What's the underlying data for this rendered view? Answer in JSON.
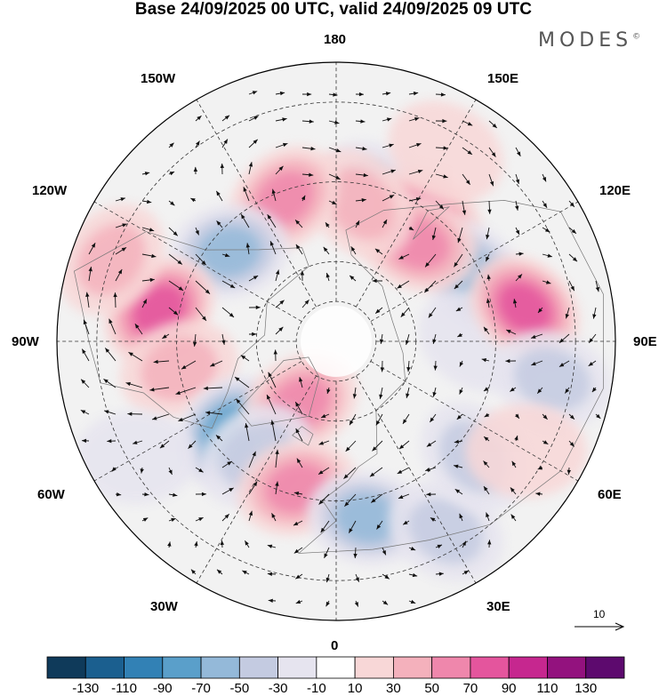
{
  "title": "Base 24/09/2025 00 UTC, valid 24/09/2025 09 UTC",
  "brand": {
    "name": "MODES",
    "mark": "©"
  },
  "longitude_labels": {
    "top": "180",
    "bottom": "0",
    "left": "90W",
    "right": "90E",
    "upper_left": "150W",
    "upper_right": "150E",
    "mid_upper_left": "120W",
    "mid_upper_right": "120E",
    "mid_lower_left": "60W",
    "mid_lower_right": "60E",
    "lower_left": "30W",
    "lower_right": "30E"
  },
  "vector_scale": {
    "label": "10"
  },
  "legend": {
    "colors": [
      "#0f3a5a",
      "#1b5f8f",
      "#3281b5",
      "#5a9fca",
      "#94b9d9",
      "#c4cbe1",
      "#e6e4ef",
      "#ffffff",
      "#f8d7d7",
      "#f4b1bc",
      "#ef87ac",
      "#e4559d",
      "#c6278f",
      "#93127e",
      "#5d0a6e"
    ],
    "ticks": [
      "-130",
      "-110",
      "-90",
      "-70",
      "-50",
      "-30",
      "-10",
      "10",
      "30",
      "50",
      "70",
      "90",
      "110",
      "130"
    ]
  },
  "anomaly_cells": [
    {
      "lon": 165,
      "lat": 52,
      "v": -45
    },
    {
      "lon": 145,
      "lat": 52,
      "v": 50
    },
    {
      "lon": 115,
      "lat": 52,
      "v": -60
    },
    {
      "lon": 90,
      "lat": 55,
      "v": -25
    },
    {
      "lon": 140,
      "lat": 58,
      "v": 55
    },
    {
      "lon": 100,
      "lat": 42,
      "v": 80
    },
    {
      "lon": 80,
      "lat": 35,
      "v": -35
    },
    {
      "lon": 170,
      "lat": 55,
      "v": 35
    },
    {
      "lon": -160,
      "lat": 52,
      "v": 65
    },
    {
      "lon": -130,
      "lat": 55,
      "v": -65
    },
    {
      "lon": -100,
      "lat": 45,
      "v": 75
    },
    {
      "lon": -80,
      "lat": 50,
      "v": 40
    },
    {
      "lon": -50,
      "lat": 55,
      "v": -85
    },
    {
      "lon": -30,
      "lat": 72,
      "v": 60
    },
    {
      "lon": -35,
      "lat": 55,
      "v": -35
    },
    {
      "lon": -15,
      "lat": 52,
      "v": 55
    },
    {
      "lon": 10,
      "lat": 45,
      "v": -50
    },
    {
      "lon": 30,
      "lat": 35,
      "v": -35
    },
    {
      "lon": 50,
      "lat": 45,
      "v": -30
    },
    {
      "lon": 60,
      "lat": 35,
      "v": 25
    },
    {
      "lon": 150,
      "lat": 35,
      "v": 25
    },
    {
      "lon": -110,
      "lat": 30,
      "v": 30
    },
    {
      "lon": -60,
      "lat": 32,
      "v": -25
    }
  ]
}
